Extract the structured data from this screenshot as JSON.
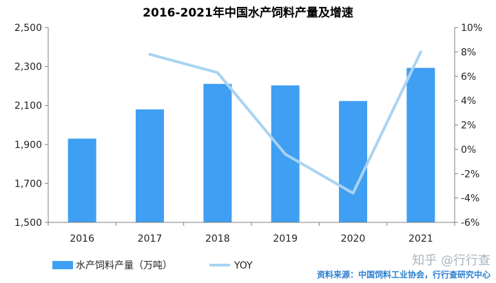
{
  "chart_data": {
    "type": "bar",
    "title": "2016-2021年中国水产饲料产量及增速",
    "categories": [
      "2016",
      "2017",
      "2018",
      "2019",
      "2020",
      "2021"
    ],
    "series": [
      {
        "name": "水产饲料产量（万吨）",
        "type": "bar",
        "axis": "left",
        "values": [
          1930,
          2080,
          2211,
          2203,
          2123,
          2293
        ]
      },
      {
        "name": "YOY",
        "type": "line",
        "axis": "right",
        "values": [
          null,
          7.8,
          6.3,
          -0.4,
          -3.6,
          8.0
        ]
      }
    ],
    "y_left": {
      "range": [
        1500,
        2500
      ],
      "ticks": [
        "1,500",
        "1,700",
        "1,900",
        "2,100",
        "2,300",
        "2,500"
      ]
    },
    "y_right": {
      "range": [
        -6,
        10
      ],
      "ticks": [
        "-6%",
        "-4%",
        "-2%",
        "0%",
        "2%",
        "4%",
        "6%",
        "8%",
        "10%"
      ]
    },
    "legend_position": "bottom-left",
    "grid": false,
    "colors": {
      "bar": "#3f9ff2",
      "line": "#a9d3f2"
    }
  },
  "source_note": "资料来源：中国饲料工业协会，行行查研究中心",
  "watermark": "知乎 @行行查"
}
